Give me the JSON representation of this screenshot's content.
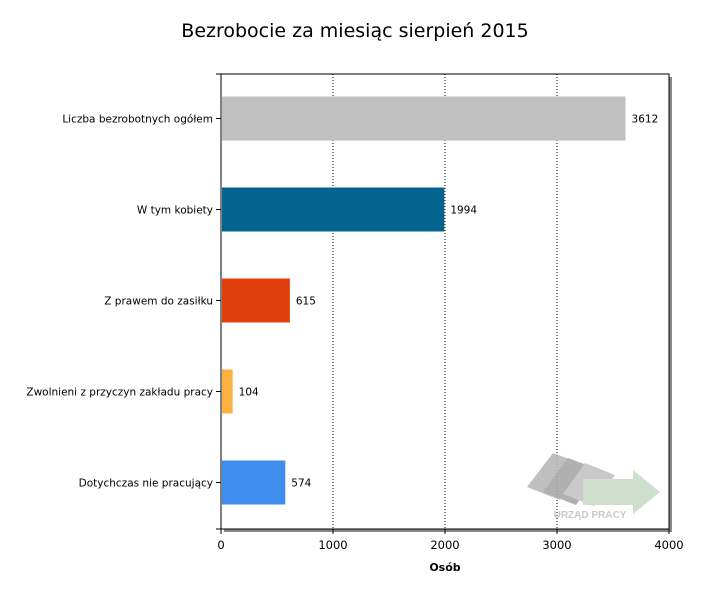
{
  "chart_data": {
    "type": "bar",
    "orientation": "horizontal",
    "title": "Bezrobocie za miesiąc sierpień 2015",
    "xlabel": "Osób",
    "ylabel": "",
    "xlim": [
      0,
      4000
    ],
    "x_ticks": [
      "0",
      "1000",
      "2000",
      "3000",
      "4000"
    ],
    "grid": "vertical dotted",
    "categories": [
      "Liczba bezrobotnych ogółem",
      "W tym kobiety",
      "Z prawem do zasiłku",
      "Zwolnieni z przyczyn zakładu pracy",
      "Dotychczas nie pracujący"
    ],
    "category_labels_display": [
      "Liczba bezrobotnych ogółem",
      "W tym kobiety",
      "Z prawem do zasiłku",
      "Zwolnieni z przyczyn zakładu pracy",
      "Dotychczas nie pracujący"
    ],
    "values": [
      3612,
      1994,
      615,
      104,
      574
    ],
    "colors": [
      "#c0c0c0",
      "#04638f",
      "#e0400e",
      "#fbb040",
      "#3f8ded"
    ]
  },
  "watermark": {
    "text": "URZĄD PRACY"
  }
}
